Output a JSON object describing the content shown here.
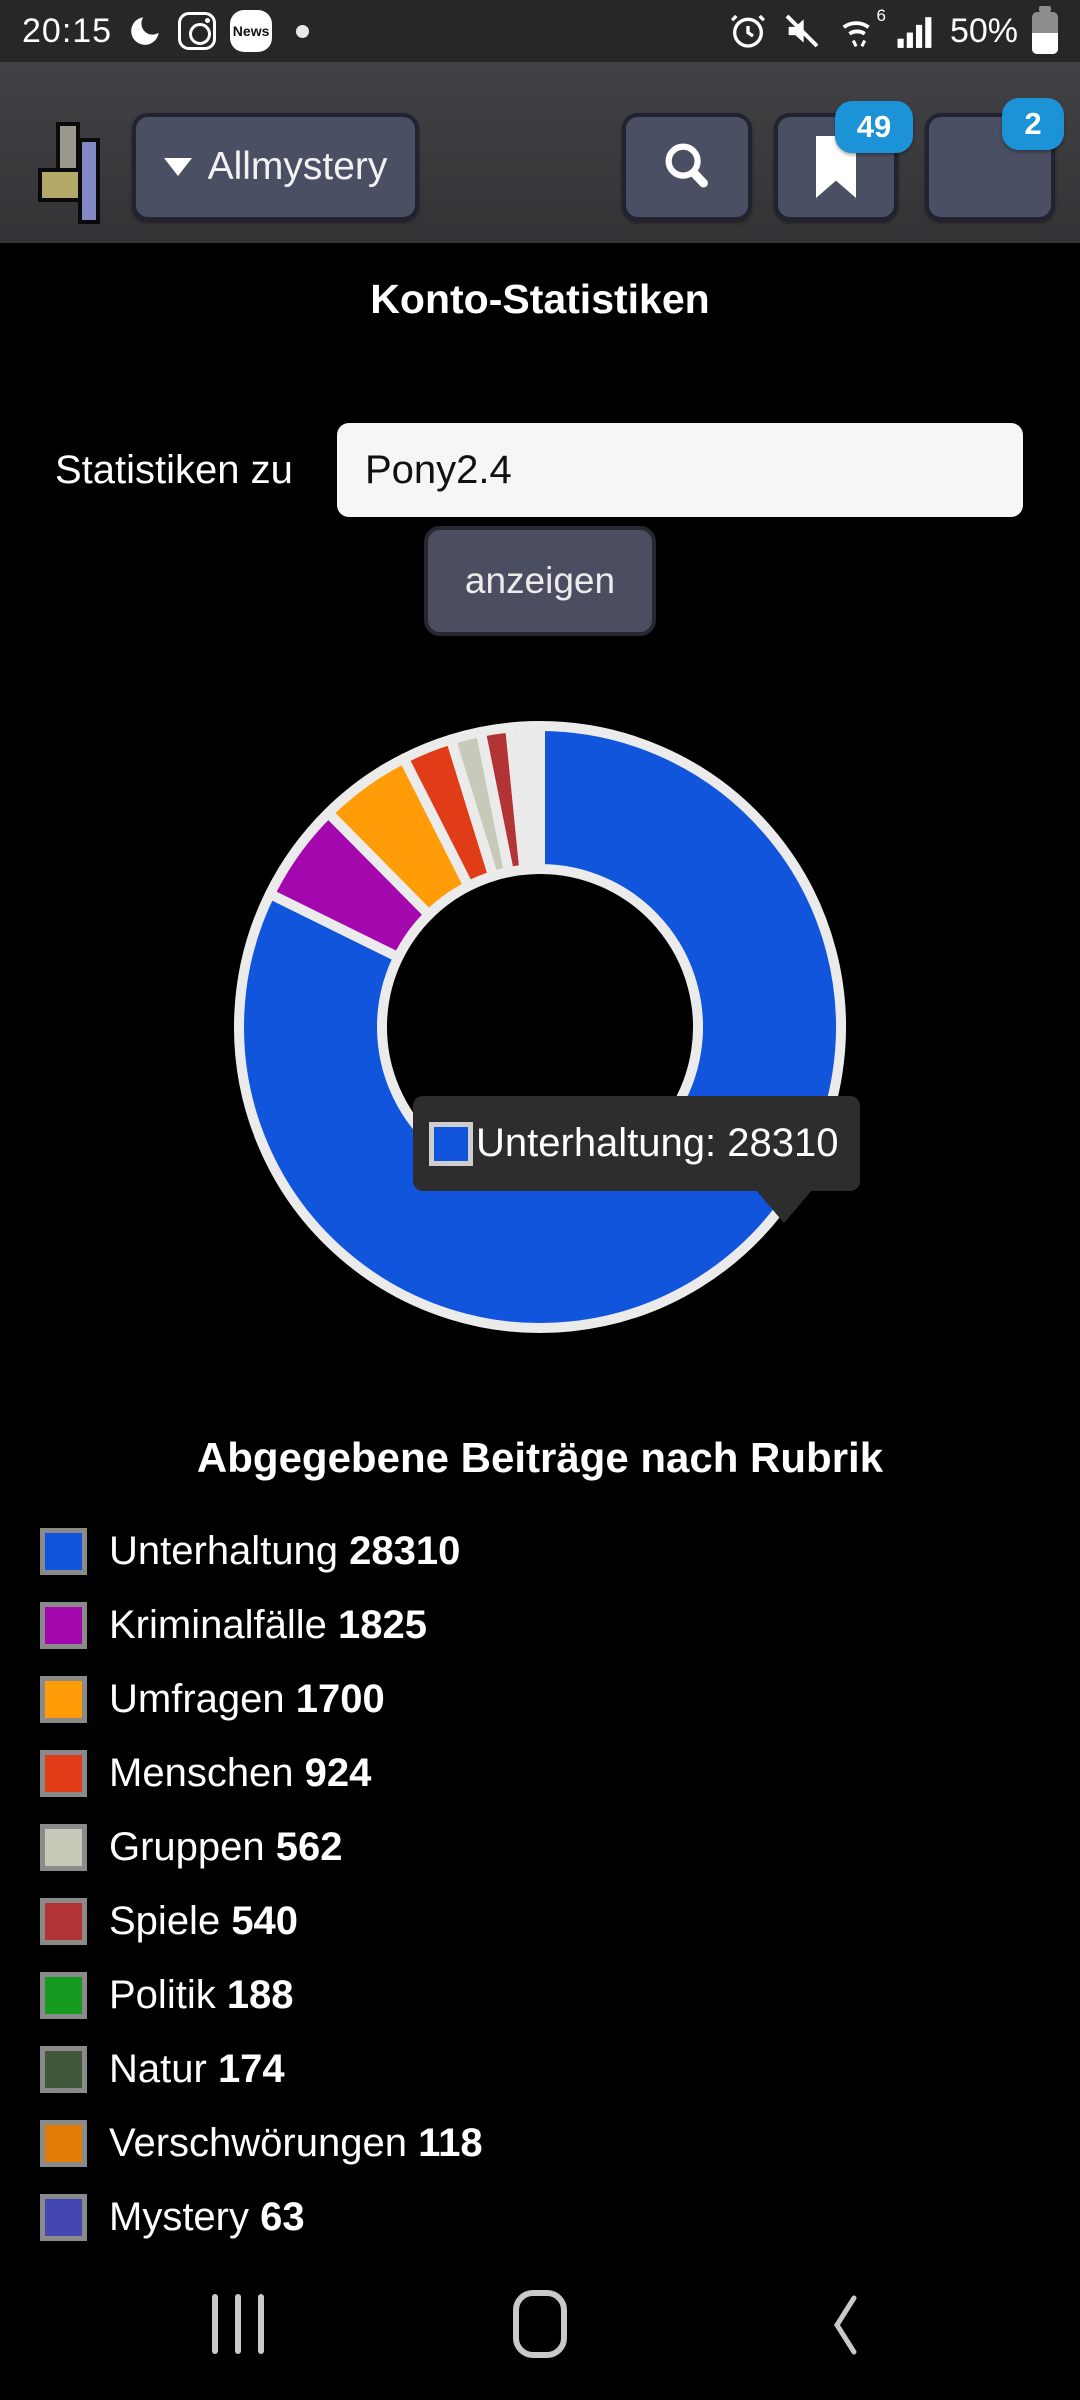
{
  "status_bar": {
    "time": "20:15",
    "news_label": "News",
    "wifi_label": "6",
    "battery_percent": "50%",
    "left_icons": [
      "moon-icon",
      "instagram-icon",
      "news-icon",
      "notification-dot"
    ],
    "right_icons": [
      "alarm-icon",
      "mute-icon",
      "wifi6-icon",
      "signal-icon",
      "battery-icon"
    ]
  },
  "header": {
    "site_name": "Allmystery",
    "bookmark_badge": "49",
    "inbox_badge": "2"
  },
  "page": {
    "title": "Konto-Statistiken"
  },
  "form": {
    "label": "Statistiken zu",
    "input_value": "Pony2.4",
    "submit_label": "anzeigen"
  },
  "tooltip": {
    "text": "Unterhaltung: 28310",
    "color": "#1155dc"
  },
  "chart_data": {
    "type": "pie",
    "variant": "doughnut",
    "title": "Abgegebene Beiträge nach Rubrik",
    "categories": [
      "Unterhaltung",
      "Kriminalfälle",
      "Umfragen",
      "Menschen",
      "Gruppen",
      "Spiele",
      "Politik",
      "Natur",
      "Verschwörungen",
      "Mystery"
    ],
    "values": [
      28310,
      1825,
      1700,
      924,
      562,
      540,
      188,
      174,
      118,
      63
    ],
    "colors": [
      "#1155dc",
      "#a407ad",
      "#ff9c07",
      "#df3c17",
      "#c7cab8",
      "#b23434",
      "#169b20",
      "#42583a",
      "#e27c04",
      "#4447b2"
    ],
    "start_angle_deg": 0,
    "direction": "clockwise",
    "border_color": "#ebebeb",
    "inner_radius_ratio": 0.52,
    "legend_position": "bottom"
  },
  "nav_bar": {
    "items": [
      "recents",
      "home",
      "back"
    ]
  }
}
